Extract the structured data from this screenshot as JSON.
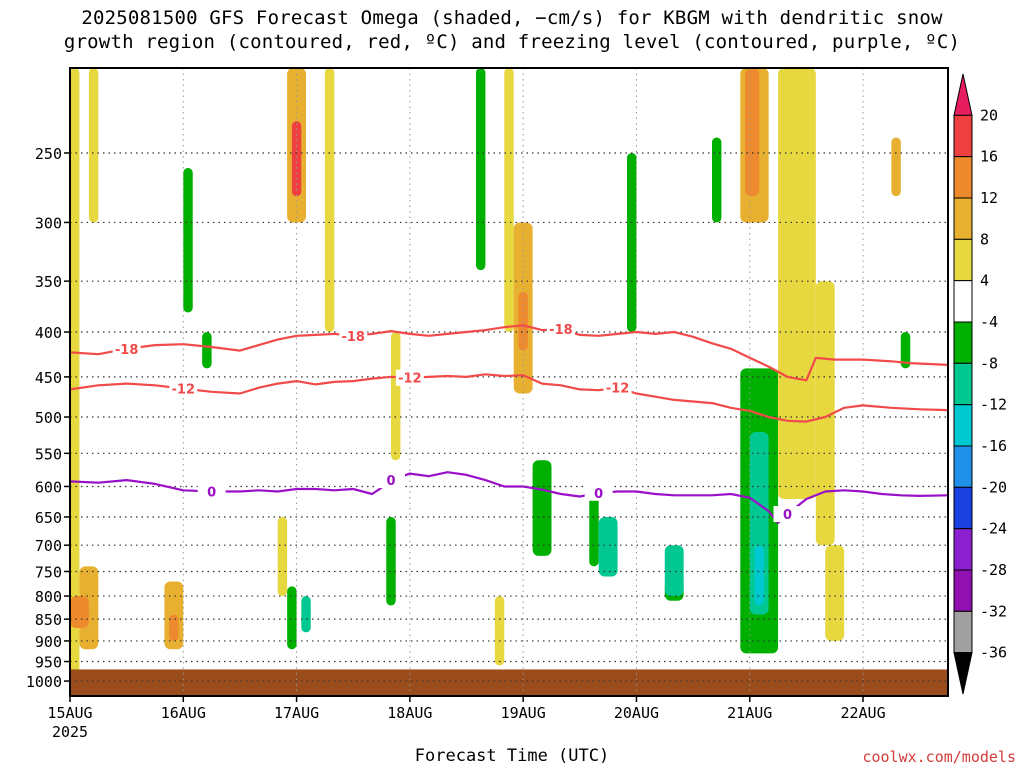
{
  "title": {
    "line1": "2025081500 GFS Forecast Omega (shaded, −cm/s) for KBGM with dendritic snow",
    "line2": "growth region (contoured, red, ºC) and freezing level (contoured, purple, ºC)"
  },
  "xlabel": "Forecast Time (UTC)",
  "credit": "coolwx.com/models",
  "chart_data": {
    "type": "heatmap",
    "title": "2025081500 GFS Forecast Omega (shaded, −cm/s) for KBGM with dendritic snow growth region (contoured, red, ºC) and freezing level (contoured, purple, ºC)",
    "xlabel": "Forecast Time (UTC)",
    "ylabel": "",
    "x_range_hours": [
      0,
      186
    ],
    "x_ticks": [
      {
        "hour": 0,
        "label": "15AUG",
        "sub": "2025"
      },
      {
        "hour": 24,
        "label": "16AUG",
        "sub": ""
      },
      {
        "hour": 48,
        "label": "17AUG",
        "sub": ""
      },
      {
        "hour": 72,
        "label": "18AUG",
        "sub": ""
      },
      {
        "hour": 96,
        "label": "19AUG",
        "sub": ""
      },
      {
        "hour": 120,
        "label": "20AUG",
        "sub": ""
      },
      {
        "hour": 144,
        "label": "21AUG",
        "sub": ""
      },
      {
        "hour": 168,
        "label": "22AUG",
        "sub": ""
      }
    ],
    "y_axis": "pressure_hPa_log",
    "y_range": [
      200,
      1040
    ],
    "y_ticks": [
      250,
      300,
      350,
      400,
      450,
      500,
      550,
      600,
      650,
      700,
      750,
      800,
      850,
      900,
      950,
      1000
    ],
    "grid": true,
    "colorbar": {
      "levels": [
        20,
        16,
        12,
        8,
        4,
        -4,
        -8,
        -12,
        -16,
        -20,
        -24,
        -28,
        -32,
        -36
      ],
      "colors": [
        "#e61e60",
        "#ef4040",
        "#ee8a2e",
        "#e8b030",
        "#e8d840",
        "#ffffff",
        "#00b000",
        "#00c890",
        "#00c8d0",
        "#2090e8",
        "#1a40e0",
        "#8a20d0",
        "#9010b0",
        "#a0a0a0",
        "#000000"
      ]
    },
    "contours": {
      "dendritic_minus18": {
        "color": "#f04a4a",
        "label": "-18",
        "points": [
          [
            0,
            422
          ],
          [
            6,
            424
          ],
          [
            12,
            418
          ],
          [
            18,
            414
          ],
          [
            24,
            413
          ],
          [
            30,
            416
          ],
          [
            36,
            420
          ],
          [
            40,
            414
          ],
          [
            44,
            408
          ],
          [
            48,
            404
          ],
          [
            52,
            403
          ],
          [
            56,
            402
          ],
          [
            60,
            404
          ],
          [
            64,
            402
          ],
          [
            68,
            399
          ],
          [
            72,
            402
          ],
          [
            76,
            404
          ],
          [
            80,
            402
          ],
          [
            84,
            400
          ],
          [
            88,
            398
          ],
          [
            92,
            395
          ],
          [
            96,
            393
          ],
          [
            100,
            398
          ],
          [
            104,
            397
          ],
          [
            108,
            403
          ],
          [
            112,
            404
          ],
          [
            116,
            402
          ],
          [
            120,
            400
          ],
          [
            124,
            402
          ],
          [
            128,
            400
          ],
          [
            132,
            405
          ],
          [
            136,
            412
          ],
          [
            140,
            418
          ],
          [
            144,
            428
          ],
          [
            148,
            438
          ],
          [
            152,
            450
          ],
          [
            156,
            454
          ],
          [
            158,
            428
          ],
          [
            162,
            430
          ],
          [
            168,
            430
          ],
          [
            174,
            432
          ],
          [
            178,
            434
          ],
          [
            186,
            436
          ]
        ]
      },
      "dendritic_minus12": {
        "color": "#f04a4a",
        "label": "-12",
        "points": [
          [
            0,
            465
          ],
          [
            6,
            460
          ],
          [
            12,
            458
          ],
          [
            18,
            460
          ],
          [
            24,
            464
          ],
          [
            30,
            468
          ],
          [
            36,
            470
          ],
          [
            40,
            463
          ],
          [
            44,
            458
          ],
          [
            48,
            455
          ],
          [
            52,
            459
          ],
          [
            56,
            456
          ],
          [
            60,
            455
          ],
          [
            64,
            452
          ],
          [
            68,
            450
          ],
          [
            72,
            451
          ],
          [
            76,
            450
          ],
          [
            80,
            449
          ],
          [
            84,
            450
          ],
          [
            88,
            447
          ],
          [
            92,
            449
          ],
          [
            96,
            448
          ],
          [
            100,
            458
          ],
          [
            104,
            460
          ],
          [
            108,
            465
          ],
          [
            112,
            466
          ],
          [
            116,
            463
          ],
          [
            120,
            470
          ],
          [
            124,
            474
          ],
          [
            128,
            478
          ],
          [
            132,
            480
          ],
          [
            136,
            482
          ],
          [
            140,
            488
          ],
          [
            144,
            492
          ],
          [
            148,
            500
          ],
          [
            152,
            505
          ],
          [
            156,
            506
          ],
          [
            160,
            500
          ],
          [
            164,
            488
          ],
          [
            168,
            485
          ],
          [
            174,
            488
          ],
          [
            180,
            490
          ],
          [
            186,
            491
          ]
        ]
      },
      "freezing_level_0": {
        "color": "#9a10c8",
        "label": "0",
        "points": [
          [
            0,
            592
          ],
          [
            6,
            594
          ],
          [
            12,
            590
          ],
          [
            18,
            596
          ],
          [
            24,
            606
          ],
          [
            30,
            608
          ],
          [
            36,
            608
          ],
          [
            40,
            606
          ],
          [
            44,
            608
          ],
          [
            48,
            604
          ],
          [
            52,
            604
          ],
          [
            56,
            606
          ],
          [
            60,
            604
          ],
          [
            64,
            612
          ],
          [
            66,
            602
          ],
          [
            68,
            590
          ],
          [
            72,
            580
          ],
          [
            76,
            584
          ],
          [
            80,
            578
          ],
          [
            84,
            582
          ],
          [
            88,
            590
          ],
          [
            92,
            600
          ],
          [
            96,
            600
          ],
          [
            100,
            605
          ],
          [
            104,
            612
          ],
          [
            108,
            616
          ],
          [
            112,
            610
          ],
          [
            116,
            608
          ],
          [
            120,
            608
          ],
          [
            124,
            612
          ],
          [
            128,
            614
          ],
          [
            132,
            614
          ],
          [
            136,
            614
          ],
          [
            140,
            612
          ],
          [
            144,
            618
          ],
          [
            148,
            640
          ],
          [
            150,
            660
          ],
          [
            152,
            645
          ],
          [
            156,
            620
          ],
          [
            160,
            608
          ],
          [
            164,
            606
          ],
          [
            168,
            608
          ],
          [
            172,
            612
          ],
          [
            176,
            614
          ],
          [
            180,
            615
          ],
          [
            186,
            614
          ]
        ]
      }
    },
    "omega_regions": [
      {
        "x": [
          0,
          2
        ],
        "p": [
          200,
          980
        ],
        "value": 6
      },
      {
        "x": [
          2,
          6
        ],
        "p": [
          740,
          920
        ],
        "value": 9
      },
      {
        "x": [
          0,
          4
        ],
        "p": [
          800,
          870
        ],
        "value": 12
      },
      {
        "x": [
          4,
          6
        ],
        "p": [
          200,
          300
        ],
        "value": 5
      },
      {
        "x": [
          20,
          24
        ],
        "p": [
          770,
          920
        ],
        "value": 8
      },
      {
        "x": [
          21,
          23
        ],
        "p": [
          840,
          900
        ],
        "value": 12
      },
      {
        "x": [
          24,
          26
        ],
        "p": [
          260,
          380
        ],
        "value": -6
      },
      {
        "x": [
          28,
          30
        ],
        "p": [
          400,
          440
        ],
        "value": -6
      },
      {
        "x": [
          46,
          50
        ],
        "p": [
          200,
          300
        ],
        "value": 10
      },
      {
        "x": [
          47,
          49
        ],
        "p": [
          230,
          280
        ],
        "value": 18
      },
      {
        "x": [
          46,
          48
        ],
        "p": [
          780,
          920
        ],
        "value": -8
      },
      {
        "x": [
          49,
          51
        ],
        "p": [
          800,
          880
        ],
        "value": -10
      },
      {
        "x": [
          44,
          46
        ],
        "p": [
          650,
          800
        ],
        "value": 5
      },
      {
        "x": [
          54,
          56
        ],
        "p": [
          200,
          400
        ],
        "value": 5
      },
      {
        "x": [
          68,
          70
        ],
        "p": [
          400,
          560
        ],
        "value": 5
      },
      {
        "x": [
          67,
          69
        ],
        "p": [
          650,
          820
        ],
        "value": -8
      },
      {
        "x": [
          86,
          88
        ],
        "p": [
          200,
          340
        ],
        "value": -6
      },
      {
        "x": [
          92,
          94
        ],
        "p": [
          200,
          400
        ],
        "value": 5
      },
      {
        "x": [
          94,
          98
        ],
        "p": [
          300,
          470
        ],
        "value": 8
      },
      {
        "x": [
          95,
          97
        ],
        "p": [
          360,
          420
        ],
        "value": 12
      },
      {
        "x": [
          90,
          92
        ],
        "p": [
          800,
          960
        ],
        "value": 6
      },
      {
        "x": [
          98,
          102
        ],
        "p": [
          560,
          720
        ],
        "value": -8
      },
      {
        "x": [
          110,
          112
        ],
        "p": [
          600,
          740
        ],
        "value": -8
      },
      {
        "x": [
          112,
          116
        ],
        "p": [
          650,
          760
        ],
        "value": -12
      },
      {
        "x": [
          118,
          120
        ],
        "p": [
          250,
          400
        ],
        "value": -8
      },
      {
        "x": [
          126,
          130
        ],
        "p": [
          770,
          810
        ],
        "value": -8
      },
      {
        "x": [
          126,
          130
        ],
        "p": [
          700,
          800
        ],
        "value": -12
      },
      {
        "x": [
          136,
          138
        ],
        "p": [
          240,
          300
        ],
        "value": -6
      },
      {
        "x": [
          142,
          148
        ],
        "p": [
          200,
          300
        ],
        "value": 8
      },
      {
        "x": [
          143,
          146
        ],
        "p": [
          200,
          280
        ],
        "value": 14
      },
      {
        "x": [
          142,
          150
        ],
        "p": [
          440,
          930
        ],
        "value": -8
      },
      {
        "x": [
          144,
          148
        ],
        "p": [
          520,
          840
        ],
        "value": -12
      },
      {
        "x": [
          145,
          147
        ],
        "p": [
          700,
          820
        ],
        "value": -16
      },
      {
        "x": [
          150,
          158
        ],
        "p": [
          200,
          620
        ],
        "value": 5
      },
      {
        "x": [
          158,
          162
        ],
        "p": [
          350,
          700
        ],
        "value": 5
      },
      {
        "x": [
          160,
          164
        ],
        "p": [
          700,
          900
        ],
        "value": 6
      },
      {
        "x": [
          176,
          178
        ],
        "p": [
          400,
          440
        ],
        "value": -8
      },
      {
        "x": [
          174,
          176
        ],
        "p": [
          240,
          280
        ],
        "value": 8
      }
    ],
    "ground_band_hPa": [
      970,
      1040
    ]
  }
}
